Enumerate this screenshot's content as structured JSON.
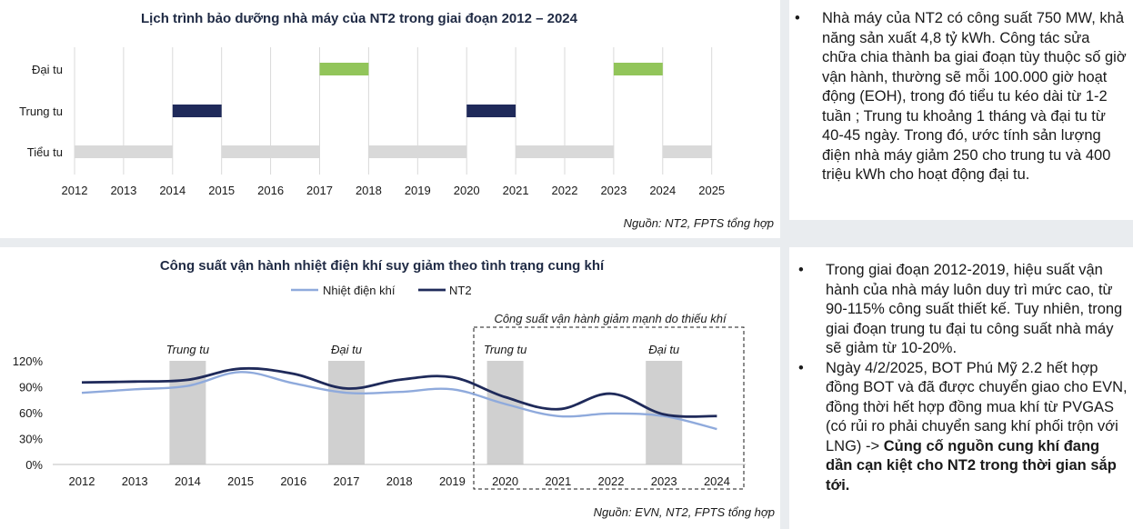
{
  "top_chart": {
    "title": "Lịch trình bảo dưỡng nhà máy của NT2 trong giai đoạn 2012 – 2024",
    "source": "Nguồn: NT2, FPTS tổng hợp",
    "colors": {
      "dai_tu": "#92c55a",
      "trung_tu": "#1f2a5a",
      "tieu_tu": "#d9d9d9"
    }
  },
  "bottom_chart": {
    "title": "Công suất vận hành nhiệt điện khí suy giảm theo tình trạng cung khí",
    "source": "Nguồn: EVN, NT2, FPTS tổng hợp",
    "box_label": "Công suất vận hành giảm mạnh do thiếu khí",
    "colors": {
      "nhiet_dien_khi": "#8faadc",
      "nt2": "#1f2a5a",
      "maintenance": "#d0d0d0"
    }
  },
  "chart_data": [
    {
      "type": "table",
      "title": "Lịch trình bảo dưỡng nhà máy của NT2 trong giai đoạn 2012 – 2024",
      "x_ticks": [
        "2012",
        "2013",
        "2014",
        "2015",
        "2016",
        "2017",
        "2018",
        "2019",
        "2020",
        "2021",
        "2022",
        "2023",
        "2024",
        "2025"
      ],
      "rows": [
        "Đại tu",
        "Trung tu",
        "Tiểu tu"
      ],
      "periods": [
        {
          "row": "Tiểu tu",
          "start": 2012,
          "end": 2014
        },
        {
          "row": "Trung tu",
          "start": 2014,
          "end": 2015
        },
        {
          "row": "Tiểu tu",
          "start": 2015,
          "end": 2017
        },
        {
          "row": "Đại tu",
          "start": 2017,
          "end": 2018
        },
        {
          "row": "Tiểu tu",
          "start": 2018,
          "end": 2020
        },
        {
          "row": "Trung tu",
          "start": 2020,
          "end": 2021
        },
        {
          "row": "Tiểu tu",
          "start": 2021,
          "end": 2023
        },
        {
          "row": "Đại tu",
          "start": 2023,
          "end": 2024
        },
        {
          "row": "Tiểu tu",
          "start": 2024,
          "end": 2025
        }
      ]
    },
    {
      "type": "line",
      "title": "Công suất vận hành nhiệt điện khí suy giảm theo tình trạng cung khí",
      "categories": [
        "2012",
        "2013",
        "2014",
        "2015",
        "2016",
        "2017",
        "2018",
        "2019",
        "2020",
        "2021",
        "2022",
        "2023",
        "2024"
      ],
      "y_ticks": [
        "0%",
        "30%",
        "60%",
        "90%",
        "120%"
      ],
      "ylim": [
        0,
        120
      ],
      "legend_position": "top-center",
      "series": [
        {
          "name": "Nhiệt điện khí",
          "values": [
            83,
            87,
            91,
            107,
            94,
            83,
            84,
            87,
            70,
            56,
            59,
            56,
            41
          ]
        },
        {
          "name": "NT2",
          "values": [
            95,
            96,
            98,
            111,
            105,
            88,
            98,
            101,
            78,
            64,
            82,
            58,
            56
          ]
        }
      ],
      "annotations": [
        {
          "label": "Trung tu",
          "category": "2014"
        },
        {
          "label": "Đại tu",
          "category": "2017"
        },
        {
          "label": "Trung tu",
          "category": "2020"
        },
        {
          "label": "Đại tu",
          "category": "2023"
        }
      ],
      "highlight_range": [
        "2020",
        "2024"
      ]
    }
  ],
  "notes_top": {
    "bullet": "•",
    "text": "Nhà máy của NT2 có công suất 750 MW, khả năng sản xuất 4,8 tỷ kWh. Công tác sửa chữa chia thành ba giai đoạn tùy thuộc số giờ vận hành, thường sẽ mỗi 100.000 giờ hoạt động (EOH), trong đó tiểu tu kéo dài từ 1-2 tuần ; Trung tu khoảng 1 tháng và đại tu từ 40-45 ngày. Trong đó, ước tính sản lượng điện nhà máy giảm 250 cho trung tu và 400 triệu kWh cho hoạt động đại tu."
  },
  "notes_bottom": {
    "bullet": "•",
    "p1": "Trong giai đoạn 2012-2019, hiệu suất vận hành của nhà máy luôn duy trì mức cao, từ 90-115% công suất thiết kế. Tuy nhiên, trong giai đoạn trung tu đại tu công suất nhà máy sẽ giảm từ 10-20%.",
    "p2_normal": "Ngày 4/2/2025, BOT Phú Mỹ 2.2 hết hợp đồng BOT và đã được chuyển giao cho EVN, đồng thời hết hợp đồng mua khí từ PVGAS (có rủi ro phải chuyển sang khí phối trộn với LNG) -> ",
    "p2_bold": "Củng cố nguồn cung khí đang dần cạn kiệt cho NT2 trong thời gian sắp tới."
  }
}
